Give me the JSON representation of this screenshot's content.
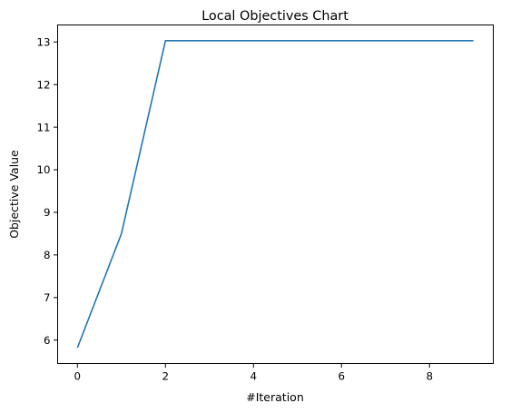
{
  "chart_data": {
    "type": "line",
    "title": "Local Objectives Chart",
    "xlabel": "#Iteration",
    "ylabel": "Objective Value",
    "xlim": [
      -0.45,
      9.45
    ],
    "ylim": [
      5.45,
      13.4
    ],
    "xticks": [
      0,
      2,
      4,
      6,
      8
    ],
    "yticks": [
      6,
      7,
      8,
      9,
      10,
      11,
      12,
      13
    ],
    "grid": false,
    "series": [
      {
        "color": "#1f77b4",
        "x": [
          0,
          1,
          2,
          3,
          4,
          5,
          6,
          7,
          8,
          9
        ],
        "values": [
          5.82,
          8.5,
          13.03,
          13.03,
          13.03,
          13.03,
          13.03,
          13.03,
          13.03,
          13.03
        ]
      }
    ]
  }
}
